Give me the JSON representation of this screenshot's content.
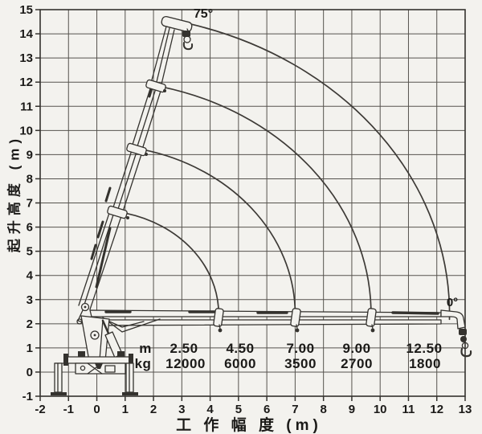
{
  "chart_data": {
    "type": "line",
    "title": "",
    "xlabel": "工 作 幅 度 (m)",
    "ylabel": "起升高度 (m)",
    "xlim": [
      -2,
      13
    ],
    "ylim": [
      -1,
      15
    ],
    "x_ticks": [
      -2,
      -1,
      0,
      1,
      2,
      3,
      4,
      5,
      6,
      7,
      8,
      9,
      10,
      11,
      12,
      13
    ],
    "y_ticks": [
      -1,
      0,
      1,
      2,
      3,
      4,
      5,
      6,
      7,
      8,
      9,
      10,
      11,
      12,
      13,
      14,
      15
    ],
    "grid": true,
    "legend": "none",
    "boom_pivot": {
      "x": 0,
      "y": 2.4
    },
    "boom_angle_labels": {
      "max": "75°",
      "min": "0°"
    },
    "reach_arcs": [
      {
        "radius_m": 4.3,
        "start_deg": 76.0,
        "end_deg": 1.0
      },
      {
        "radius_m": 7.0,
        "start_deg": 76.5,
        "end_deg": 1.0
      },
      {
        "radius_m": 9.68,
        "start_deg": 76.5,
        "end_deg": 0.5
      },
      {
        "radius_m": 12.45,
        "start_deg": 74.5,
        "end_deg": -1.0
      }
    ],
    "load_table": {
      "rows": [
        {
          "label": "m",
          "values": [
            "2.50",
            "4.50",
            "7.00",
            "9.00",
            "12.50"
          ]
        },
        {
          "label": "kg",
          "values": [
            "12000",
            "6000",
            "3500",
            "2700",
            "1800"
          ]
        }
      ]
    },
    "colors": {
      "paper": "#f3f2ee",
      "grid": "#56534e",
      "line": "#34322e",
      "text": "#1b1a18"
    }
  }
}
